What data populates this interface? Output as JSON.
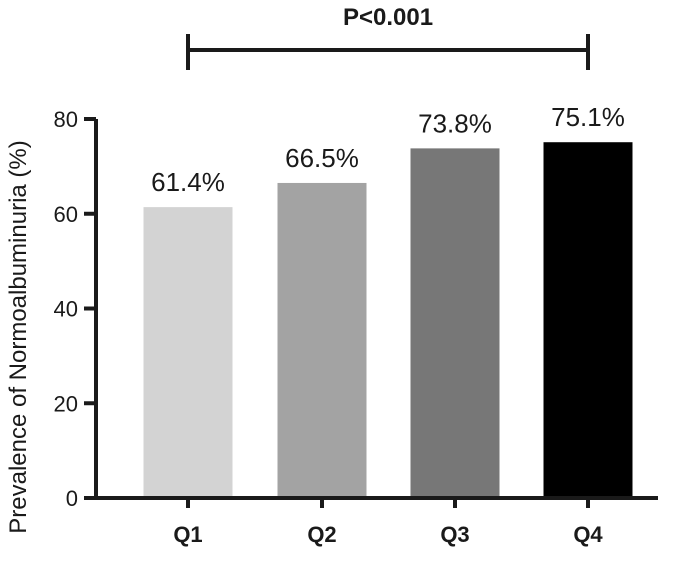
{
  "chart_data": {
    "type": "bar",
    "categories": [
      "Q1",
      "Q2",
      "Q3",
      "Q4"
    ],
    "values": [
      61.4,
      66.5,
      73.8,
      75.1
    ],
    "data_labels": [
      "61.4%",
      "66.5%",
      "73.8%",
      "75.1%"
    ],
    "bar_colors": [
      "#d3d3d3",
      "#a3a3a3",
      "#777777",
      "#000000"
    ],
    "title": "",
    "xlabel": "",
    "ylabel": "Prevalence of Normoalbuminuria (%)",
    "ylim": [
      0,
      80
    ],
    "yticks": [
      0,
      20,
      40,
      60,
      80
    ],
    "grid": false,
    "annotation": {
      "text": "P<0.001",
      "from_category": "Q1",
      "to_category": "Q4"
    }
  }
}
